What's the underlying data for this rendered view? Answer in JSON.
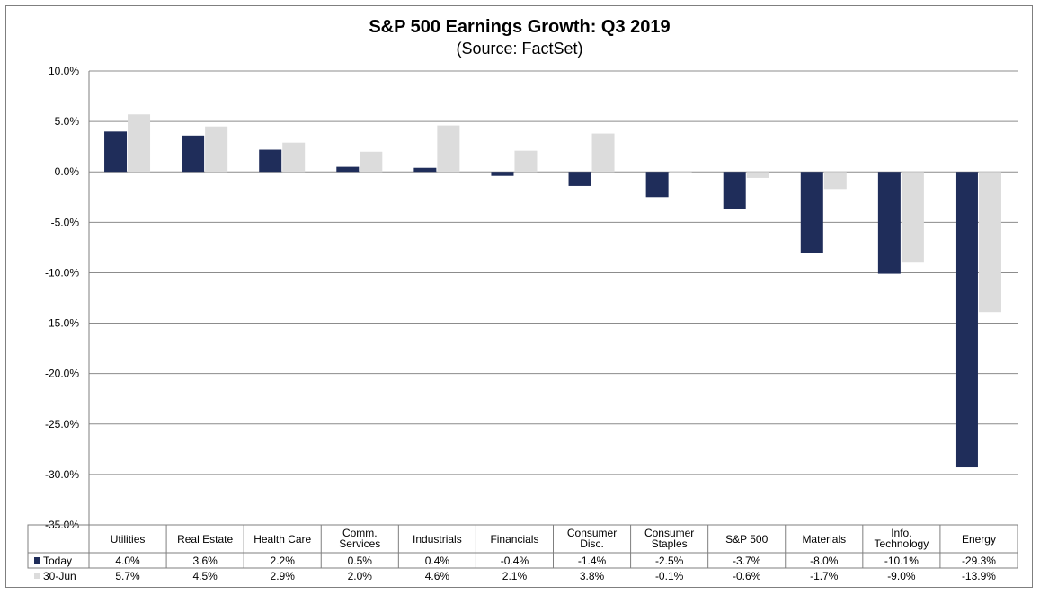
{
  "chart_data": {
    "type": "bar",
    "title": "S&P 500 Earnings Growth: Q3 2019",
    "subtitle": "(Source: FactSet)",
    "categories": [
      [
        "Utilities"
      ],
      [
        "Real Estate"
      ],
      [
        "Health Care"
      ],
      [
        "Comm.",
        "Services"
      ],
      [
        "Industrials"
      ],
      [
        "Financials"
      ],
      [
        "Consumer",
        "Disc."
      ],
      [
        "Consumer",
        "Staples"
      ],
      [
        "S&P 500"
      ],
      [
        "Materials"
      ],
      [
        "Info.",
        "Technology"
      ],
      [
        "Energy"
      ]
    ],
    "series": [
      {
        "name": "Today",
        "color": "#1f2d5a",
        "values": [
          4.0,
          3.6,
          2.2,
          0.5,
          0.4,
          -0.4,
          -1.4,
          -2.5,
          -3.7,
          -8.0,
          -10.1,
          -29.3
        ],
        "labels": [
          "4.0%",
          "3.6%",
          "2.2%",
          "0.5%",
          "0.4%",
          "-0.4%",
          "-1.4%",
          "-2.5%",
          "-3.7%",
          "-8.0%",
          "-10.1%",
          "-29.3%"
        ]
      },
      {
        "name": "30-Jun",
        "color": "#dcdcdc",
        "values": [
          5.7,
          4.5,
          2.9,
          2.0,
          4.6,
          2.1,
          3.8,
          -0.1,
          -0.6,
          -1.7,
          -9.0,
          -13.9
        ],
        "labels": [
          "5.7%",
          "4.5%",
          "2.9%",
          "2.0%",
          "4.6%",
          "2.1%",
          "3.8%",
          "-0.1%",
          "-0.6%",
          "-1.7%",
          "-9.0%",
          "-13.9%"
        ]
      }
    ],
    "ylim": [
      -35,
      10
    ],
    "yticks": [
      10,
      5,
      0,
      -5,
      -10,
      -15,
      -20,
      -25,
      -30,
      -35
    ],
    "ytick_labels": [
      "10.0%",
      "5.0%",
      "0.0%",
      "-5.0%",
      "-10.0%",
      "-15.0%",
      "-20.0%",
      "-25.0%",
      "-30.0%",
      "-35.0%"
    ],
    "grid": true,
    "legend": "data-table"
  }
}
